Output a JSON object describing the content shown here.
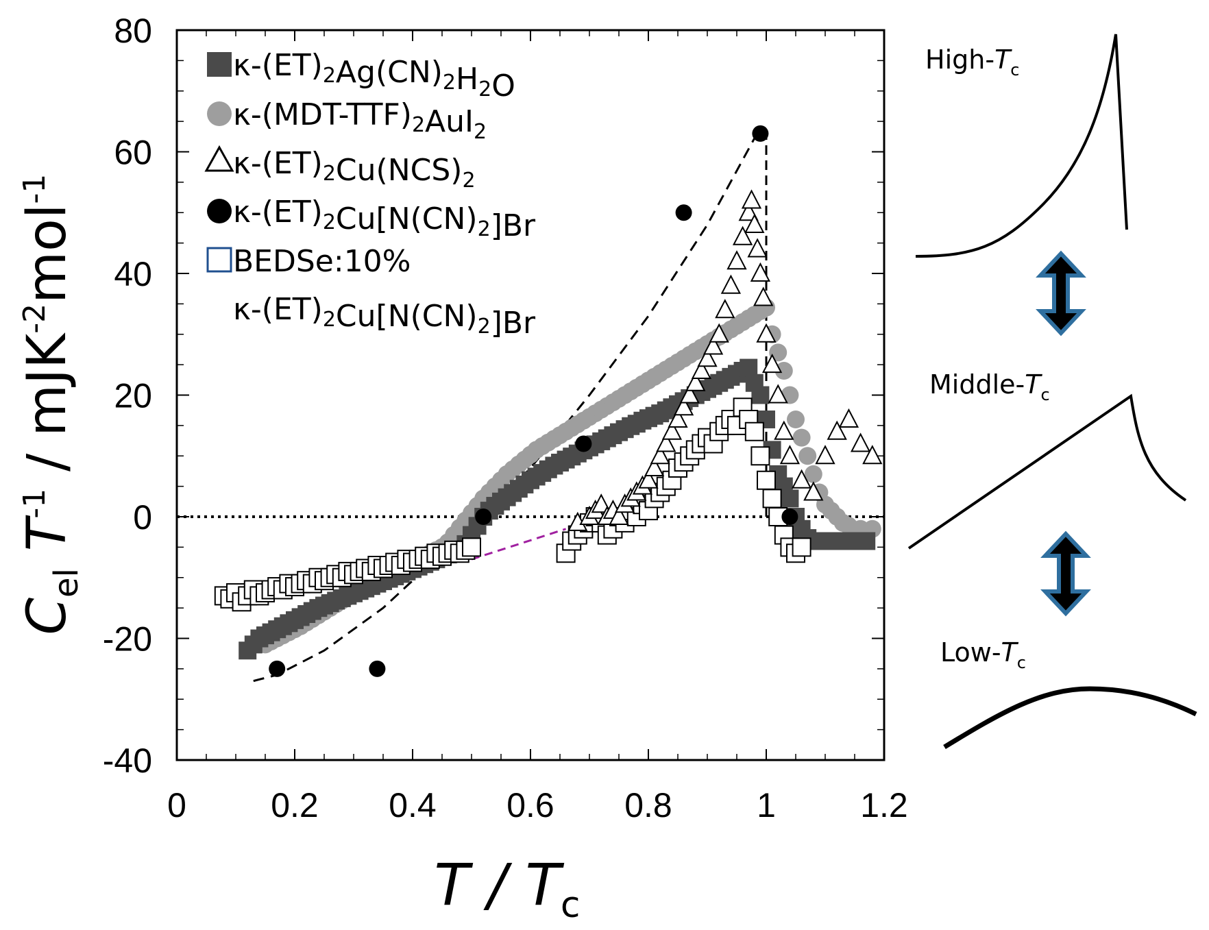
{
  "chart_data": {
    "type": "scatter",
    "title": "",
    "xlabel": {
      "main": "T / T",
      "sub": "c"
    },
    "ylabel": {
      "text": "C",
      "sub": "el",
      "rest": " T",
      "sup1": "-1",
      "unit": " / mJK",
      "sup2": "-2",
      "unit2": "mol",
      "sup3": "-1"
    },
    "xlim": [
      0,
      1.2
    ],
    "ylim": [
      -40,
      80
    ],
    "xticks": [
      0,
      0.2,
      0.4,
      0.6,
      0.8,
      1,
      1.2
    ],
    "xtick_labels": [
      "0",
      "0.2",
      "0.4",
      "0.6",
      "0.8",
      "1",
      "1.2"
    ],
    "yticks": [
      -40,
      -20,
      0,
      20,
      40,
      60,
      80
    ],
    "ytick_labels": [
      "-40",
      "-20",
      "0",
      "20",
      "40",
      "60",
      "80"
    ],
    "reference_line_y": 0,
    "legend_position": "top-left",
    "legend": [
      {
        "marker": "filled-square",
        "parts": [
          [
            "κ-(ET)",
            ""
          ],
          [
            "2",
            "sub"
          ],
          [
            "Ag(CN)",
            ""
          ],
          [
            "2",
            "sub"
          ],
          [
            "H",
            ""
          ],
          [
            "2",
            "sub"
          ],
          [
            "O",
            ""
          ]
        ]
      },
      {
        "marker": "filled-circle-gray",
        "parts": [
          [
            "κ-(MDT-TTF)",
            ""
          ],
          [
            "2",
            "sub"
          ],
          [
            "AuI",
            ""
          ],
          [
            "2",
            "sub"
          ]
        ]
      },
      {
        "marker": "open-triangle",
        "parts": [
          [
            "κ-(ET)",
            ""
          ],
          [
            "2",
            "sub"
          ],
          [
            "Cu(NCS)",
            ""
          ],
          [
            "2",
            "sub"
          ]
        ]
      },
      {
        "marker": "filled-circle-black",
        "parts": [
          [
            "κ-(ET)",
            ""
          ],
          [
            "2",
            "sub"
          ],
          [
            "Cu[N(CN)",
            ""
          ],
          [
            "2",
            "sub"
          ],
          [
            "]Br",
            ""
          ]
        ]
      },
      {
        "marker": "open-square",
        "parts": [
          [
            "BEDSe:10%",
            ""
          ]
        ]
      },
      {
        "marker": "none",
        "parts": [
          [
            "κ-(ET)",
            ""
          ],
          [
            "2",
            "sub"
          ],
          [
            "Cu[N(CN)",
            ""
          ],
          [
            "2",
            "sub"
          ],
          [
            "]Br",
            ""
          ]
        ]
      }
    ],
    "series": [
      {
        "name": "κ-(ET)2Ag(CN)2H2O",
        "marker": "filled-square",
        "color": "#4a4a4a",
        "x": [
          0.12,
          0.13,
          0.14,
          0.15,
          0.16,
          0.17,
          0.18,
          0.19,
          0.2,
          0.21,
          0.22,
          0.23,
          0.24,
          0.25,
          0.26,
          0.27,
          0.28,
          0.29,
          0.3,
          0.31,
          0.32,
          0.33,
          0.34,
          0.35,
          0.36,
          0.37,
          0.38,
          0.39,
          0.4,
          0.41,
          0.42,
          0.43,
          0.44,
          0.45,
          0.46,
          0.47,
          0.48,
          0.49,
          0.5,
          0.51,
          0.52,
          0.53,
          0.54,
          0.55,
          0.56,
          0.57,
          0.58,
          0.59,
          0.6,
          0.61,
          0.62,
          0.63,
          0.64,
          0.65,
          0.66,
          0.67,
          0.68,
          0.69,
          0.7,
          0.71,
          0.72,
          0.73,
          0.74,
          0.75,
          0.76,
          0.77,
          0.78,
          0.79,
          0.8,
          0.81,
          0.82,
          0.83,
          0.84,
          0.85,
          0.86,
          0.87,
          0.88,
          0.89,
          0.9,
          0.91,
          0.92,
          0.93,
          0.94,
          0.95,
          0.96,
          0.97,
          0.98,
          0.99,
          1.0,
          1.01,
          1.02,
          1.03,
          1.04,
          1.05,
          1.06,
          1.07,
          1.08,
          1.1,
          1.12,
          1.15,
          1.17
        ],
        "y": [
          -22,
          -21,
          -20,
          -19.5,
          -19,
          -18.5,
          -18,
          -17.5,
          -17,
          -16.5,
          -16,
          -15.5,
          -15,
          -14.6,
          -14.2,
          -13.8,
          -13.4,
          -13,
          -12.6,
          -12.2,
          -11.8,
          -11.4,
          -11,
          -10.6,
          -10.2,
          -9.8,
          -9.4,
          -9,
          -8.6,
          -8.2,
          -7.8,
          -7.4,
          -7,
          -6.6,
          -6.2,
          -5.8,
          -5.4,
          -4.5,
          -3,
          -1.5,
          0,
          1,
          1.8,
          2.5,
          3.2,
          3.9,
          4.6,
          5.3,
          6,
          6.6,
          7.2,
          7.8,
          8.4,
          8.9,
          9.4,
          9.9,
          10.4,
          10.9,
          11.4,
          11.9,
          12.4,
          12.9,
          13.4,
          13.9,
          14.4,
          14.9,
          15.3,
          15.8,
          16.2,
          16.6,
          17,
          17.5,
          18,
          18.5,
          19,
          19.5,
          20,
          20.5,
          21,
          21.5,
          22,
          22.5,
          23,
          23.5,
          24,
          24.5,
          22,
          20,
          16,
          11,
          7,
          5,
          3,
          0,
          -2,
          -3.5,
          -4,
          -4,
          -4,
          -4,
          -4
        ]
      },
      {
        "name": "κ-(MDT-TTF)2AuI2",
        "marker": "filled-circle",
        "color": "#9e9e9e",
        "x": [
          0.15,
          0.16,
          0.17,
          0.18,
          0.19,
          0.2,
          0.21,
          0.22,
          0.23,
          0.24,
          0.25,
          0.26,
          0.27,
          0.28,
          0.29,
          0.3,
          0.31,
          0.32,
          0.33,
          0.34,
          0.35,
          0.36,
          0.37,
          0.38,
          0.39,
          0.4,
          0.41,
          0.42,
          0.43,
          0.44,
          0.45,
          0.46,
          0.47,
          0.48,
          0.49,
          0.5,
          0.51,
          0.52,
          0.53,
          0.54,
          0.55,
          0.56,
          0.57,
          0.58,
          0.59,
          0.6,
          0.61,
          0.62,
          0.63,
          0.64,
          0.65,
          0.66,
          0.67,
          0.68,
          0.69,
          0.7,
          0.71,
          0.72,
          0.73,
          0.74,
          0.75,
          0.76,
          0.77,
          0.78,
          0.79,
          0.8,
          0.81,
          0.82,
          0.83,
          0.84,
          0.85,
          0.86,
          0.87,
          0.88,
          0.89,
          0.9,
          0.91,
          0.92,
          0.93,
          0.94,
          0.95,
          0.96,
          0.97,
          0.98,
          0.99,
          1.0,
          1.01,
          1.02,
          1.03,
          1.04,
          1.05,
          1.06,
          1.07,
          1.08,
          1.09,
          1.1,
          1.11,
          1.12,
          1.13,
          1.14,
          1.16,
          1.18
        ],
        "y": [
          -21,
          -20.5,
          -20,
          -19.5,
          -19,
          -18.5,
          -18,
          -17.4,
          -16.8,
          -16.2,
          -15.6,
          -15,
          -14.4,
          -13.8,
          -13.2,
          -12.6,
          -12,
          -11.5,
          -11,
          -10.5,
          -10,
          -9.5,
          -9,
          -8.5,
          -8,
          -7.5,
          -7,
          -6.5,
          -6,
          -5.5,
          -5,
          -4.2,
          -3,
          -1.8,
          -0.6,
          0.6,
          1.8,
          3,
          4,
          5,
          6,
          7,
          7.8,
          8.6,
          9.4,
          10.2,
          11,
          11.6,
          12.2,
          12.8,
          13.4,
          14,
          14.6,
          15.2,
          15.8,
          16.4,
          17,
          17.6,
          18.2,
          18.8,
          19.4,
          20,
          20.6,
          21.2,
          21.8,
          22.4,
          23,
          23.6,
          24.2,
          24.8,
          25.4,
          26,
          26.6,
          27.2,
          27.8,
          28.4,
          29,
          29.6,
          30.2,
          30.8,
          31.4,
          32,
          32.6,
          33.2,
          33.8,
          34.4,
          30,
          27,
          24,
          20,
          16,
          13,
          10,
          7,
          4,
          2,
          1,
          0,
          -1,
          -1.5,
          -2,
          -2
        ]
      },
      {
        "name": "κ-(ET)2Cu(NCS)2",
        "marker": "open-triangle",
        "color": "#000000",
        "x": [
          0.68,
          0.7,
          0.71,
          0.72,
          0.73,
          0.74,
          0.75,
          0.76,
          0.77,
          0.78,
          0.79,
          0.8,
          0.81,
          0.82,
          0.83,
          0.84,
          0.85,
          0.86,
          0.87,
          0.88,
          0.89,
          0.9,
          0.91,
          0.92,
          0.93,
          0.94,
          0.95,
          0.96,
          0.97,
          0.975,
          0.98,
          0.985,
          0.99,
          0.995,
          1.0,
          1.01,
          1.02,
          1.03,
          1.04,
          1.06,
          1.08,
          1.1,
          1.12,
          1.14,
          1.16,
          1.18
        ],
        "y": [
          -1,
          0,
          1,
          2,
          0,
          1,
          0,
          2,
          3,
          4,
          5,
          6,
          8,
          10,
          12,
          14,
          16,
          18,
          20,
          22,
          24,
          26,
          28,
          30,
          34,
          38,
          42,
          46,
          50,
          52,
          48,
          44,
          40,
          36,
          30,
          25,
          20,
          14,
          10,
          6,
          4,
          10,
          14,
          16,
          12,
          10
        ]
      },
      {
        "name": "κ-(ET)2Cu[N(CN)2]Br",
        "marker": "filled-circle-black",
        "color": "#000000",
        "x": [
          0.17,
          0.34,
          0.52,
          0.69,
          0.86,
          0.99,
          1.04
        ],
        "y": [
          -25,
          -25,
          0,
          12,
          50,
          63,
          0
        ]
      },
      {
        "name": "BEDSe:10% κ-(ET)2Cu[N(CN)2]Br",
        "marker": "open-square",
        "color": "#000000",
        "x": [
          0.08,
          0.09,
          0.1,
          0.11,
          0.12,
          0.13,
          0.14,
          0.15,
          0.16,
          0.17,
          0.18,
          0.19,
          0.2,
          0.21,
          0.22,
          0.23,
          0.24,
          0.25,
          0.26,
          0.27,
          0.28,
          0.29,
          0.3,
          0.31,
          0.32,
          0.33,
          0.34,
          0.35,
          0.36,
          0.37,
          0.38,
          0.39,
          0.4,
          0.41,
          0.42,
          0.43,
          0.44,
          0.45,
          0.46,
          0.47,
          0.48,
          0.49,
          0.5,
          0.66,
          0.67,
          0.68,
          0.69,
          0.7,
          0.71,
          0.72,
          0.73,
          0.74,
          0.75,
          0.76,
          0.77,
          0.78,
          0.79,
          0.8,
          0.81,
          0.82,
          0.83,
          0.84,
          0.85,
          0.86,
          0.87,
          0.88,
          0.89,
          0.9,
          0.91,
          0.92,
          0.93,
          0.94,
          0.95,
          0.96,
          0.97,
          0.98,
          0.99,
          1.0,
          1.01,
          1.02,
          1.03,
          1.04,
          1.05,
          1.06
        ],
        "y": [
          -13,
          -13.5,
          -12.5,
          -14,
          -13,
          -12,
          -13,
          -12.5,
          -12,
          -11.5,
          -12,
          -11,
          -11.5,
          -11,
          -10.5,
          -11,
          -10,
          -10.5,
          -10,
          -9.5,
          -10,
          -9,
          -9.5,
          -9,
          -8.5,
          -9,
          -8,
          -8.5,
          -8,
          -7.5,
          -8,
          -7,
          -7.5,
          -7,
          -6.5,
          -7,
          -6,
          -6.5,
          -6,
          -5.5,
          -6,
          -5.5,
          -5,
          -6,
          -4,
          -3,
          -2,
          -1,
          0,
          -1,
          -3,
          -2,
          0,
          -1,
          1,
          0,
          2,
          1,
          3,
          4,
          5,
          6,
          8,
          9,
          10,
          11,
          12,
          13,
          12,
          14,
          15,
          16,
          15,
          18,
          16,
          14,
          10,
          6,
          3,
          0,
          -3,
          -5,
          -6,
          -5
        ]
      }
    ],
    "dashed_envelope": {
      "x": [
        0.13,
        0.17,
        0.25,
        0.35,
        0.45,
        0.52,
        0.6,
        0.7,
        0.8,
        0.9,
        0.99
      ],
      "y": [
        -27,
        -26,
        -22,
        -15,
        -6,
        0,
        8,
        20,
        33,
        48,
        64
      ]
    },
    "dashed_vertical": {
      "x": 1.0,
      "y": [
        0,
        64
      ]
    },
    "magenta_dashed": {
      "x": [
        0.5,
        0.66
      ],
      "y": [
        -7,
        -2
      ],
      "color": "#a020a0"
    }
  },
  "side_panels": [
    {
      "label": "High-T",
      "sub": "c"
    },
    {
      "label": "Middle-T",
      "sub": "c"
    },
    {
      "label": "Low-T",
      "sub": "c"
    }
  ],
  "arrow_color": "#2f6f9f"
}
